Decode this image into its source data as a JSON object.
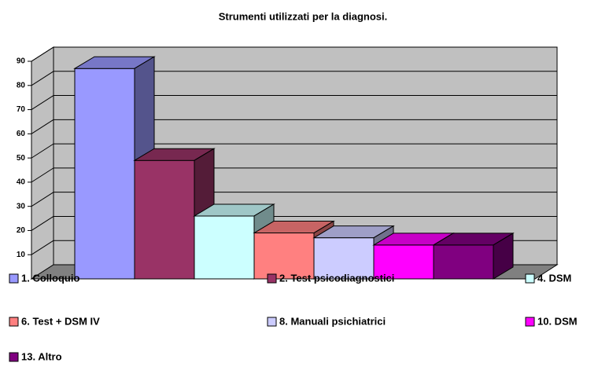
{
  "chart_data": {
    "type": "bar3d",
    "title": "Strumenti utilizzati per la diagnosi.",
    "ylim": [
      0,
      90
    ],
    "yticks": [
      10,
      20,
      30,
      40,
      50,
      60,
      70,
      80,
      90
    ],
    "grid": true,
    "series": [
      {
        "name": "1. Colloquio",
        "color": "#9999ff",
        "values": [
          87
        ]
      },
      {
        "name": "2. Test psicodiagnostici",
        "color": "#993366",
        "values": [
          49
        ]
      },
      {
        "name": "4. DSM",
        "color": "#ccffff",
        "values": [
          26
        ]
      },
      {
        "name": "6. Test + DSM IV",
        "color": "#ff8080",
        "values": [
          19
        ]
      },
      {
        "name": "8. Manuali psichiatrici",
        "color": "#ccccff",
        "values": [
          17
        ]
      },
      {
        "name": "10. DSM",
        "color": "#ff00ff",
        "values": [
          14
        ]
      },
      {
        "name": "13. Altro",
        "color": "#800080",
        "values": [
          14
        ]
      }
    ]
  }
}
